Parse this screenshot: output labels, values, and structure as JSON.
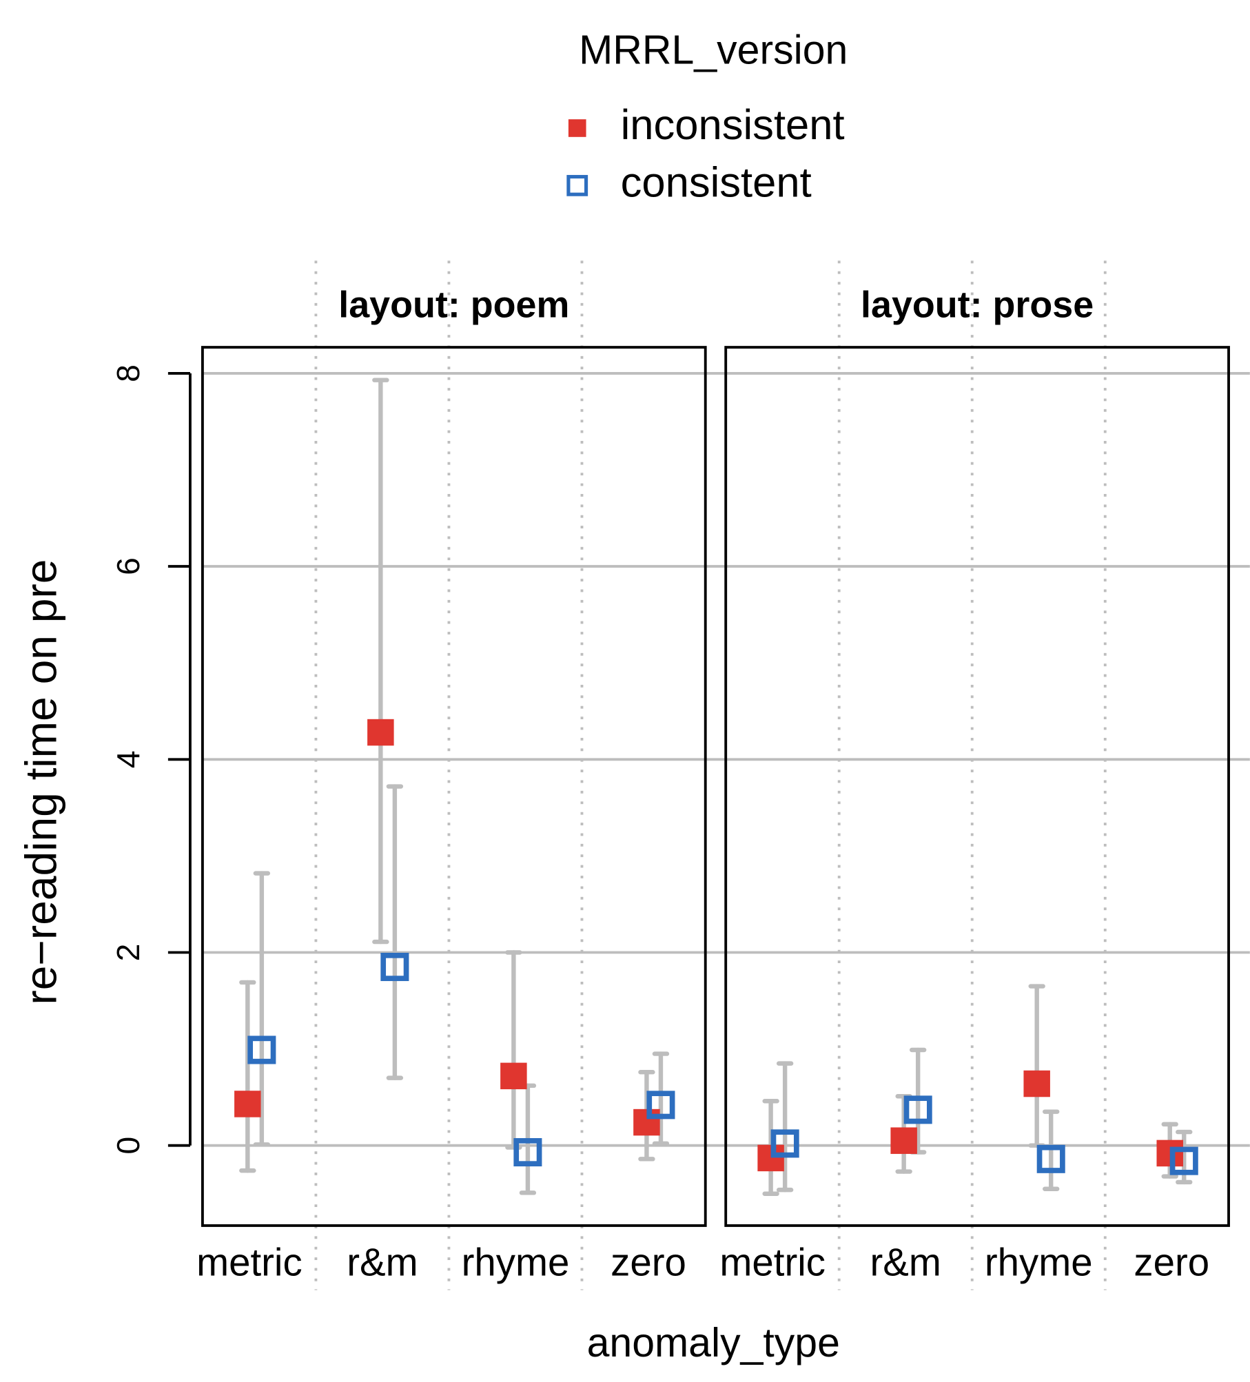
{
  "chart_data": {
    "type": "errorbar",
    "legend_title": "MRRL_version",
    "x_label": "anomaly_type",
    "y_label": "re−reading time on pre",
    "ylim": [
      -0.83,
      8.27
    ],
    "yticks": [
      0,
      2,
      4,
      6,
      8
    ],
    "grid": true,
    "categories": [
      "metric",
      "r&m",
      "rhyme",
      "zero"
    ],
    "series": [
      {
        "name": "inconsistent",
        "color": "#e0362f",
        "filled": true
      },
      {
        "name": "consistent",
        "color": "#2d6ebf",
        "filled": false
      }
    ],
    "panels": [
      {
        "title": "layout: poem",
        "data": [
          {
            "values": [
              0.43,
              4.28,
              0.72,
              0.24
            ],
            "lower": [
              -0.26,
              2.11,
              -0.02,
              -0.14
            ],
            "upper": [
              1.69,
              7.93,
              2.0,
              0.76
            ]
          },
          {
            "values": [
              0.99,
              1.85,
              -0.07,
              0.42
            ],
            "lower": [
              0.01,
              0.7,
              -0.49,
              0.02
            ],
            "upper": [
              2.82,
              3.72,
              0.62,
              0.95
            ]
          }
        ]
      },
      {
        "title": "layout: prose",
        "data": [
          {
            "values": [
              -0.13,
              0.05,
              0.64,
              -0.08
            ],
            "lower": [
              -0.5,
              -0.27,
              0,
              -0.32
            ],
            "upper": [
              0.46,
              0.51,
              1.65,
              0.22
            ]
          },
          {
            "values": [
              0.02,
              0.37,
              -0.14,
              -0.16
            ],
            "lower": [
              -0.46,
              -0.07,
              -0.45,
              -0.38
            ],
            "upper": [
              0.85,
              0.99,
              0.35,
              0.14
            ]
          }
        ]
      }
    ]
  }
}
